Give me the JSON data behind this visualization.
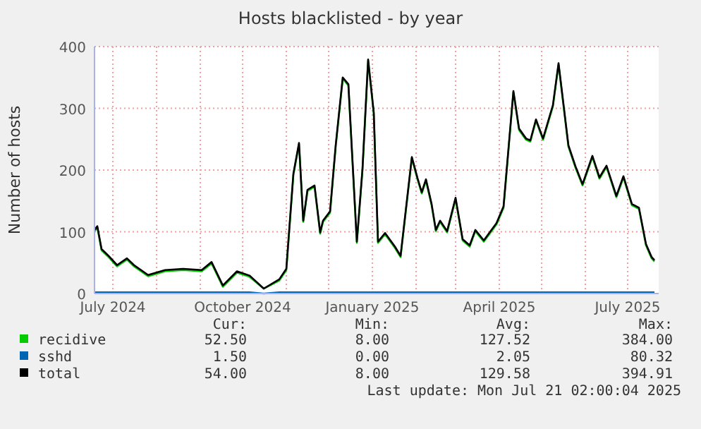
{
  "chart_data": {
    "type": "line",
    "title": "Hosts blacklisted - by year",
    "ylabel": "Number of hosts",
    "x": [
      "2024-06-18",
      "2024-06-20",
      "2024-06-23",
      "2024-06-28",
      "2024-07-04",
      "2024-07-11",
      "2024-07-16",
      "2024-07-26",
      "2024-08-07",
      "2024-08-20",
      "2024-09-02",
      "2024-09-09",
      "2024-09-17",
      "2024-09-27",
      "2024-10-06",
      "2024-10-16",
      "2024-10-27",
      "2024-11-01",
      "2024-11-06",
      "2024-11-10",
      "2024-11-13",
      "2024-11-16",
      "2024-11-21",
      "2024-11-25",
      "2024-11-27",
      "2024-12-02",
      "2024-12-06",
      "2024-12-11",
      "2024-12-15",
      "2024-12-21",
      "2024-12-25",
      "2024-12-29",
      "2025-01-02",
      "2025-01-05",
      "2025-01-10",
      "2025-01-17",
      "2025-01-21",
      "2025-01-29",
      "2025-02-02",
      "2025-02-05",
      "2025-02-08",
      "2025-02-12",
      "2025-02-15",
      "2025-02-18",
      "2025-02-23",
      "2025-03-01",
      "2025-03-06",
      "2025-03-11",
      "2025-03-15",
      "2025-03-21",
      "2025-03-30",
      "2025-04-04",
      "2025-04-11",
      "2025-04-15",
      "2025-04-20",
      "2025-04-23",
      "2025-04-27",
      "2025-05-02",
      "2025-05-09",
      "2025-05-13",
      "2025-05-20",
      "2025-05-25",
      "2025-05-30",
      "2025-06-06",
      "2025-06-11",
      "2025-06-16",
      "2025-06-23",
      "2025-06-28",
      "2025-07-04",
      "2025-07-09",
      "2025-07-14",
      "2025-07-18",
      "2025-07-20"
    ],
    "series": [
      {
        "name": "recidive",
        "color": "#00cc00",
        "values": [
          101,
          107,
          70,
          59,
          44,
          55,
          44,
          28,
          36,
          38,
          36,
          49,
          11,
          34,
          27,
          8,
          21,
          38,
          192,
          242,
          116,
          166,
          173,
          97,
          116,
          131,
          238,
          348,
          337,
          82,
          200,
          377,
          291,
          82,
          96,
          74,
          59,
          219,
          185,
          162,
          183,
          143,
          101,
          116,
          99,
          153,
          86,
          76,
          101,
          84,
          112,
          139,
          326,
          265,
          249,
          246,
          280,
          249,
          303,
          371,
          238,
          204,
          175,
          221,
          186,
          205,
          156,
          188,
          143,
          137,
          78,
          57,
          52
        ]
      },
      {
        "name": "sshd",
        "color": "#0066b3",
        "values": [
          2,
          2,
          2,
          2,
          2,
          2,
          2,
          2,
          2,
          2,
          2,
          2,
          2,
          2,
          2,
          0,
          2,
          2,
          2,
          2,
          2,
          2,
          2,
          2,
          2,
          2,
          2,
          2,
          2,
          2,
          2,
          2,
          2,
          2,
          2,
          2,
          2,
          2,
          2,
          2,
          2,
          2,
          2,
          2,
          2,
          2,
          2,
          2,
          2,
          2,
          2,
          2,
          2,
          2,
          2,
          2,
          2,
          2,
          2,
          2,
          2,
          2,
          2,
          2,
          2,
          2,
          2,
          2,
          2,
          2,
          2,
          2,
          2
        ]
      },
      {
        "name": "total",
        "color": "#000000",
        "values": [
          103,
          109,
          72,
          61,
          46,
          57,
          46,
          30,
          38,
          40,
          38,
          51,
          13,
          36,
          29,
          8,
          23,
          40,
          194,
          244,
          118,
          168,
          175,
          99,
          118,
          133,
          240,
          350,
          339,
          84,
          202,
          379,
          293,
          84,
          98,
          76,
          61,
          221,
          187,
          164,
          185,
          145,
          103,
          118,
          101,
          155,
          88,
          78,
          103,
          86,
          114,
          141,
          328,
          267,
          251,
          248,
          282,
          251,
          305,
          373,
          240,
          206,
          177,
          223,
          188,
          207,
          158,
          190,
          145,
          139,
          80,
          59,
          54
        ]
      }
    ],
    "xlim": [
      "2024-06-18",
      "2025-07-23"
    ],
    "xticks": [
      {
        "value": "2024-07-01",
        "label": "July 2024"
      },
      {
        "value": "2024-08-01",
        "label": null
      },
      {
        "value": "2024-09-01",
        "label": null
      },
      {
        "value": "2024-10-01",
        "label": "October 2024"
      },
      {
        "value": "2024-11-01",
        "label": null
      },
      {
        "value": "2024-12-01",
        "label": null
      },
      {
        "value": "2025-01-01",
        "label": "January 2025"
      },
      {
        "value": "2025-02-01",
        "label": null
      },
      {
        "value": "2025-03-01",
        "label": null
      },
      {
        "value": "2025-04-01",
        "label": "April 2025"
      },
      {
        "value": "2025-05-01",
        "label": null
      },
      {
        "value": "2025-06-01",
        "label": null
      },
      {
        "value": "2025-07-01",
        "label": "July 2025"
      }
    ],
    "ylim": [
      0,
      400
    ],
    "yticks": [
      0,
      100,
      200,
      300,
      400
    ],
    "grid": true,
    "legend": "bottom",
    "annotations": [
      "Cur:",
      "Min:",
      "Avg:",
      "Max:",
      "52.50",
      "8.00",
      "127.52",
      "384.00",
      "1.50",
      "0.00",
      "2.05",
      "80.32",
      "54.00",
      "8.00",
      "129.58",
      "394.91",
      "Last update: Mon Jul 21 02:00:04 2025"
    ]
  }
}
